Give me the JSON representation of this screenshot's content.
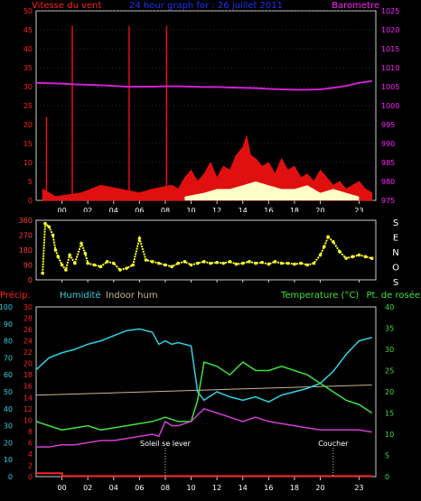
{
  "chart_data": [
    {
      "type": "bar",
      "title": "24 hour graph for : 26 juillet 2011",
      "left_label": "Vitesse du vent",
      "right_label": "Barometre",
      "colors": {
        "title": "#2030ff",
        "left": "#ff2020",
        "right": "#ff20ff",
        "wind": "#e01010",
        "gust_fill": "#ffffc8",
        "barometer": "#d020d0",
        "grid": "#555555",
        "frame": "#cccccc"
      },
      "xlim": [
        -2,
        24.3
      ],
      "x_ticks": [
        "00",
        "02",
        "04",
        "06",
        "08",
        "10",
        "12",
        "14",
        "16",
        "18",
        "20",
        "23"
      ],
      "x_tick_values": [
        0,
        2,
        4,
        6,
        8,
        10,
        12,
        14,
        16,
        18,
        20,
        23
      ],
      "ylim_left": [
        0,
        50
      ],
      "left_ticks": [
        "50",
        "45",
        "40",
        "35",
        "30",
        "25",
        "20",
        "15",
        "10",
        "5",
        "0"
      ],
      "ylim_right": [
        975,
        1025
      ],
      "right_ticks": [
        "1025",
        "1020",
        "1015",
        "1010",
        "1005",
        "1000",
        "995",
        "990",
        "985",
        "980",
        "975"
      ],
      "barometer_x": [
        -2,
        0,
        1,
        2,
        3,
        4,
        5,
        6,
        7,
        8,
        9,
        10,
        11,
        12,
        13,
        14,
        15,
        16,
        17,
        18,
        19,
        20,
        21,
        22,
        22.5,
        23,
        24
      ],
      "barometer_y": [
        1006,
        1005.8,
        1005.6,
        1005.5,
        1005.4,
        1005.2,
        1005,
        1005,
        1005,
        1005.1,
        1005.1,
        1005,
        1004.9,
        1004.9,
        1004.8,
        1004.7,
        1004.6,
        1004.4,
        1004.3,
        1004.2,
        1004.2,
        1004.3,
        1004.7,
        1005.2,
        1005.6,
        1006,
        1006.5
      ],
      "spike_x": [
        -1.2,
        0.8,
        5.2,
        8.1
      ],
      "spike_y": [
        22,
        46,
        46,
        46
      ],
      "wind_x": [
        -1.5,
        -0.5,
        1.5,
        3,
        4.5,
        6,
        7,
        8.5,
        9,
        9.5,
        10,
        10.5,
        11,
        11.5,
        12,
        12.5,
        13,
        13.5,
        14,
        14.3,
        14.6,
        15,
        15.5,
        16,
        16.5,
        17,
        17.5,
        18,
        18.5,
        19,
        19.5,
        20,
        20.5,
        21,
        21.5,
        22,
        22.5,
        23,
        23.5,
        24
      ],
      "wind_y": [
        3,
        1,
        2,
        4,
        3,
        2,
        3,
        4,
        3,
        6,
        8,
        5,
        7,
        10,
        6,
        9,
        8,
        12,
        14,
        17,
        12,
        11,
        9,
        10,
        7,
        11,
        8,
        9,
        6,
        7,
        5,
        8,
        6,
        4,
        5,
        3,
        4,
        5,
        3,
        2
      ],
      "gust_x": [
        9.5,
        11,
        12,
        13,
        14,
        15,
        16,
        17,
        18,
        19,
        20,
        21,
        22,
        23
      ],
      "gust_y": [
        1,
        2,
        3,
        3,
        4,
        5,
        4,
        3,
        3,
        4,
        2,
        3,
        2,
        1
      ]
    },
    {
      "type": "scatter",
      "title": "",
      "right_label": "SENOS",
      "right_letters": [
        "S",
        "E",
        "N",
        "O",
        "S"
      ],
      "ylim": [
        0,
        360
      ],
      "ticks": [
        "360",
        "270",
        "180",
        "90",
        "0"
      ],
      "x_ticks": [
        "00",
        "02",
        "04",
        "06",
        "08",
        "10",
        "12",
        "14",
        "16",
        "18",
        "20",
        "23"
      ],
      "x_tick_values": [
        0,
        2,
        4,
        6,
        8,
        10,
        12,
        14,
        16,
        18,
        20,
        23
      ],
      "colors": {
        "points": "#ffff30",
        "frame": "#cccccc",
        "left_ticks": "#ff4040",
        "letters": "#ffffff"
      },
      "x": [
        -1.5,
        -1.3,
        -1,
        -0.7,
        -0.5,
        -0.3,
        0,
        0.3,
        0.6,
        1,
        1.5,
        1.8,
        2,
        2.5,
        3,
        3.5,
        4,
        4.5,
        5,
        5.5,
        6,
        6.5,
        7,
        7.5,
        8,
        8.5,
        9,
        9.5,
        10,
        10.5,
        11,
        11.5,
        12,
        12.5,
        13,
        13.5,
        14,
        14.5,
        15,
        15.5,
        16,
        16.5,
        17,
        17.5,
        18,
        18.5,
        19,
        19.5,
        20,
        20.3,
        20.6,
        21,
        21.5,
        22,
        22.5,
        23,
        23.5,
        24
      ],
      "y": [
        40,
        340,
        320,
        270,
        180,
        140,
        90,
        60,
        150,
        100,
        220,
        160,
        100,
        90,
        80,
        110,
        100,
        60,
        70,
        90,
        250,
        120,
        110,
        100,
        90,
        80,
        100,
        110,
        90,
        100,
        110,
        100,
        105,
        100,
        110,
        95,
        100,
        110,
        100,
        105,
        95,
        110,
        100,
        100,
        95,
        100,
        90,
        100,
        150,
        200,
        260,
        230,
        170,
        130,
        140,
        150,
        140,
        130
      ]
    },
    {
      "type": "line",
      "title": "",
      "labels": {
        "precip": "Précip.",
        "humidity": "Humidité",
        "indoor": "Indoor hum",
        "temperature": "Temperature (°C)",
        "dewpoint": "Pt. de rosée"
      },
      "colors": {
        "precip": "#ff2020",
        "humidity": "#30d0e0",
        "indoor": "#c8b890",
        "temperature": "#40e040",
        "dewpoint": "#d040d0",
        "frame": "#cccccc"
      },
      "annotations": [
        {
          "x": 8,
          "text": "Soleil se lever"
        },
        {
          "x": 21,
          "text": "Coucher"
        }
      ],
      "x_ticks": [
        "00",
        "02",
        "04",
        "06",
        "08",
        "10",
        "12",
        "14",
        "16",
        "18",
        "20",
        "23"
      ],
      "x_tick_values": [
        0,
        2,
        4,
        6,
        8,
        10,
        12,
        14,
        16,
        18,
        20,
        23
      ],
      "xlim": [
        -2,
        24.3
      ],
      "precip_ticks": [
        "30",
        "28",
        "26",
        "24",
        "22",
        "20",
        "18",
        "16",
        "14",
        "12",
        "10",
        "8",
        "6",
        "4",
        "2",
        "0"
      ],
      "precip_lim": [
        0,
        30
      ],
      "humidity_ticks": [
        "100",
        "90",
        "80",
        "70",
        "60",
        "50",
        "40",
        "30",
        "20",
        "10",
        "0"
      ],
      "humidity_lim": [
        0,
        100
      ],
      "temp_ticks": [
        "40",
        "35",
        "30",
        "25",
        "20",
        "15",
        "10",
        "5",
        "0"
      ],
      "temp_lim": [
        0,
        40
      ],
      "precip_x": [
        -2,
        0,
        0.01,
        24
      ],
      "precip_y": [
        0.6,
        0.6,
        0.1,
        0.1
      ],
      "humidity_x": [
        -2,
        -1,
        0,
        1,
        2,
        3,
        4,
        5,
        6,
        7,
        7.5,
        8,
        8.5,
        9,
        10,
        10.5,
        11,
        12,
        13,
        14,
        15,
        16,
        17,
        18,
        19,
        20,
        21,
        22,
        23,
        24
      ],
      "humidity_y": [
        63,
        70,
        73,
        75,
        78,
        80,
        83,
        86,
        87,
        85,
        78,
        80,
        78,
        79,
        77,
        50,
        45,
        50,
        47,
        45,
        47,
        44,
        48,
        50,
        52,
        55,
        62,
        72,
        80,
        82
      ],
      "indoor_x": [
        -2,
        24
      ],
      "indoor_y": [
        48,
        54
      ],
      "temp_x": [
        -2,
        -1,
        0,
        1,
        2,
        3,
        4,
        5,
        6,
        7,
        8,
        9,
        10,
        10.5,
        11,
        12,
        13,
        14,
        15,
        16,
        17,
        18,
        19,
        20,
        21,
        22,
        23,
        24
      ],
      "temp_y": [
        13,
        12,
        11,
        11.5,
        12,
        11,
        11.5,
        12,
        12.5,
        13,
        14,
        13,
        13,
        18,
        27,
        26,
        24,
        27,
        25,
        25,
        26,
        25,
        24,
        22,
        20,
        18,
        17,
        15
      ],
      "dew_x": [
        -2,
        -1,
        0,
        1,
        2,
        3,
        4,
        5,
        6,
        7,
        7.5,
        8,
        8.5,
        9,
        10,
        11,
        12,
        13,
        14,
        15,
        16,
        17,
        18,
        19,
        20,
        21,
        22,
        23,
        24
      ],
      "dew_y": [
        7,
        7,
        7.5,
        7.5,
        8,
        8.5,
        8.5,
        9,
        9.5,
        10,
        9.5,
        13,
        12,
        12,
        13,
        16,
        15,
        14,
        13,
        14,
        13,
        12.5,
        12,
        11.5,
        11,
        11,
        11,
        11,
        10.5
      ]
    }
  ]
}
